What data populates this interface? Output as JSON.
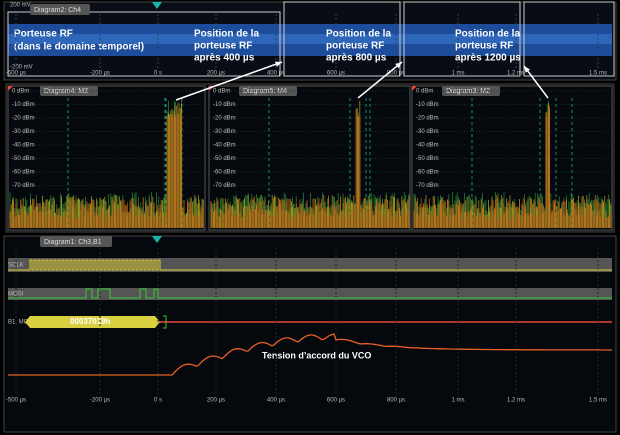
{
  "top_panel": {
    "title": "Diagram2: Ch4",
    "y_labels": [
      "200 mV",
      "-200 mV"
    ],
    "x_labels": [
      "-500 µs",
      "-200 µs",
      "0 s",
      "200 µs",
      "400 µs",
      "600 µs",
      "800 µs",
      "1 ms",
      "1.2 ms",
      "1.5 ms"
    ]
  },
  "annotations": {
    "carrier": [
      "Porteuse RF",
      "(dans le domaine temporel)"
    ],
    "positions": [
      [
        "Position de la",
        "porteuse RF",
        "après 400 µs"
      ],
      [
        "Position de la",
        "porteuse RF",
        "après 800 µs"
      ],
      [
        "Position de la",
        "porteuse RF",
        "après 1200 µs"
      ]
    ]
  },
  "spectrum_panels": [
    {
      "title": "Diagram4: M3",
      "y_labels": [
        "0 dBm",
        "-10 dBm",
        "-20 dBm",
        "-30 dBm",
        "-40 dBm",
        "-50 dBm",
        "-60 dBm",
        "-70 dBm"
      ]
    },
    {
      "title": "Diagram5: M4",
      "y_labels": [
        "0 dBm",
        "-10 dBm",
        "-20 dBm",
        "-30 dBm",
        "-40 dBm",
        "-50 dBm",
        "-60 dBm",
        "-70 dBm"
      ]
    },
    {
      "title": "Diagram3: M2",
      "y_labels": [
        "0 dBm",
        "-10 dBm",
        "-20 dBm",
        "-30 dBm",
        "-40 dBm",
        "-50 dBm",
        "-60 dBm",
        "-70 dBm"
      ]
    }
  ],
  "bottom_panel": {
    "title": "Diagram1: Ch3,B1",
    "channels": [
      "SCLK",
      "MOSI",
      "B1: MOSI"
    ],
    "bus_value": "00037019h",
    "annotation": "Tension d’accord du VCO",
    "x_labels": [
      "-500 µs",
      "-200 µs",
      "0 s",
      "200 µs",
      "400 µs",
      "600 µs",
      "800 µs",
      "1 ms",
      "1.2 ms",
      "1.5 ms"
    ]
  }
}
